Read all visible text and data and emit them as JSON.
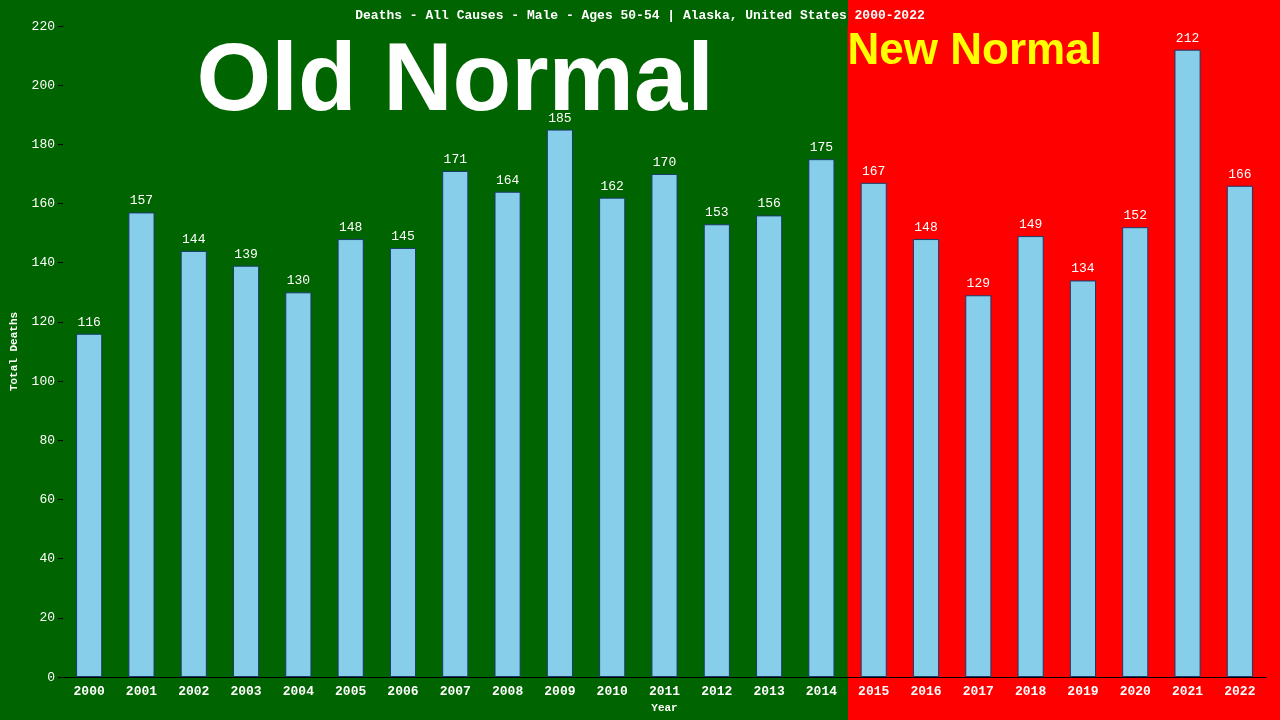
{
  "chart_data": {
    "type": "bar",
    "title": "Deaths - All Causes - Male - Ages 50-54 | Alaska, United States 2000-2022",
    "xlabel": "Year",
    "ylabel": "Total Deaths",
    "categories": [
      "2000",
      "2001",
      "2002",
      "2003",
      "2004",
      "2005",
      "2006",
      "2007",
      "2008",
      "2009",
      "2010",
      "2011",
      "2012",
      "2013",
      "2014",
      "2015",
      "2016",
      "2017",
      "2018",
      "2019",
      "2020",
      "2021",
      "2022"
    ],
    "values": [
      116,
      157,
      144,
      139,
      130,
      148,
      145,
      171,
      164,
      185,
      162,
      170,
      153,
      156,
      175,
      167,
      148,
      129,
      149,
      134,
      152,
      212,
      166
    ],
    "color": "#87ceeb",
    "data_labels": true,
    "grid": false,
    "ylim": [
      0,
      220
    ],
    "yticks": [
      0,
      20,
      40,
      60,
      80,
      100,
      120,
      140,
      160,
      180,
      200,
      220
    ],
    "bands": [
      {
        "axis": "x",
        "from": "2000",
        "to": "2014",
        "label": "Old Normal",
        "color": "#006400"
      },
      {
        "axis": "x",
        "from": "2015",
        "to": "2022",
        "label": "New Normal",
        "color": "#ff0000"
      }
    ]
  }
}
